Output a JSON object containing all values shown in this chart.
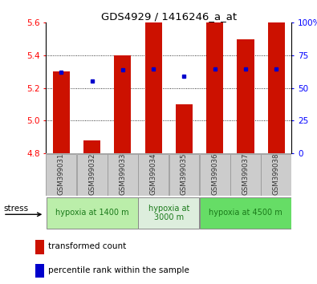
{
  "title": "GDS4929 / 1416246_a_at",
  "samples": [
    "GSM399031",
    "GSM399032",
    "GSM399033",
    "GSM399034",
    "GSM399035",
    "GSM399036",
    "GSM399037",
    "GSM399038"
  ],
  "bar_values": [
    5.3,
    4.88,
    5.4,
    5.6,
    5.1,
    5.6,
    5.5,
    5.6
  ],
  "bar_base": 4.8,
  "blue_values": [
    5.295,
    5.245,
    5.31,
    5.315,
    5.27,
    5.315,
    5.315,
    5.315
  ],
  "ylim": [
    4.8,
    5.6
  ],
  "yticks_left": [
    4.8,
    5.0,
    5.2,
    5.4,
    5.6
  ],
  "yticks_right": [
    0,
    25,
    50,
    75,
    100
  ],
  "bar_color": "#cc1100",
  "blue_color": "#0000cc",
  "groups": [
    {
      "label": "hypoxia at 1400 m",
      "start": 0,
      "end": 3,
      "color": "#bbeeaa"
    },
    {
      "label": "hypoxia at\n3000 m",
      "start": 3,
      "end": 5,
      "color": "#ddeedd"
    },
    {
      "label": "hypoxia at 4500 m",
      "start": 5,
      "end": 8,
      "color": "#66dd66"
    }
  ],
  "stress_label": "stress",
  "legend_bar_label": "transformed count",
  "legend_dot_label": "percentile rank within the sample",
  "plot_bg": "#ffffff",
  "sample_box_color": "#cccccc",
  "sample_text_color": "#333333"
}
